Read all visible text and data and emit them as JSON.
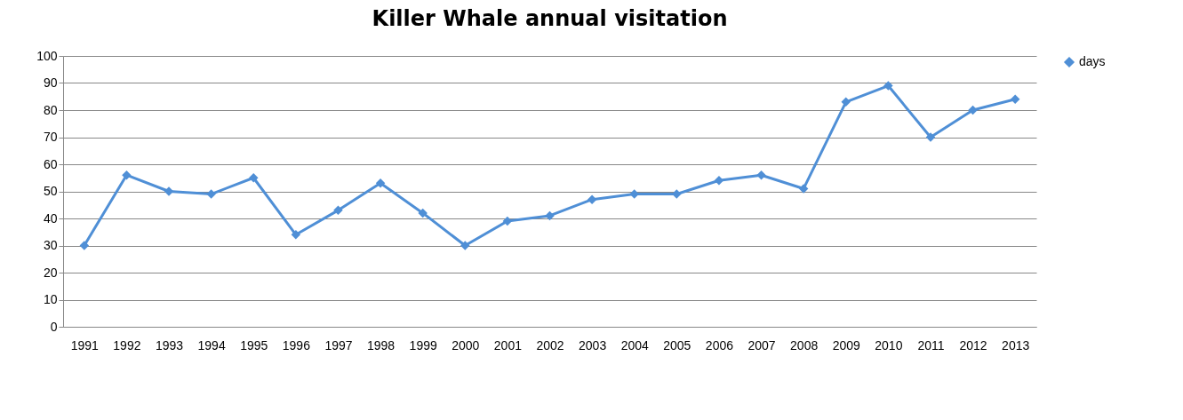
{
  "chart_data": {
    "type": "line",
    "title": "Killer Whale annual visitation",
    "categories": [
      "1991",
      "1992",
      "1993",
      "1994",
      "1995",
      "1996",
      "1997",
      "1998",
      "1999",
      "2000",
      "2001",
      "2002",
      "2003",
      "2004",
      "2005",
      "2006",
      "2007",
      "2008",
      "2009",
      "2010",
      "2011",
      "2012",
      "2013"
    ],
    "series": [
      {
        "name": "days",
        "color": "#4f8fd6",
        "values": [
          30,
          56,
          50,
          49,
          55,
          34,
          43,
          53,
          42,
          30,
          39,
          41,
          47,
          49,
          49,
          54,
          56,
          51,
          83,
          89,
          70,
          80,
          84
        ]
      }
    ],
    "ylim": [
      0,
      100
    ],
    "yticks": [
      0,
      10,
      20,
      30,
      40,
      50,
      60,
      70,
      80,
      90,
      100
    ],
    "grid": "y",
    "legend": "right",
    "marker": "diamond"
  }
}
